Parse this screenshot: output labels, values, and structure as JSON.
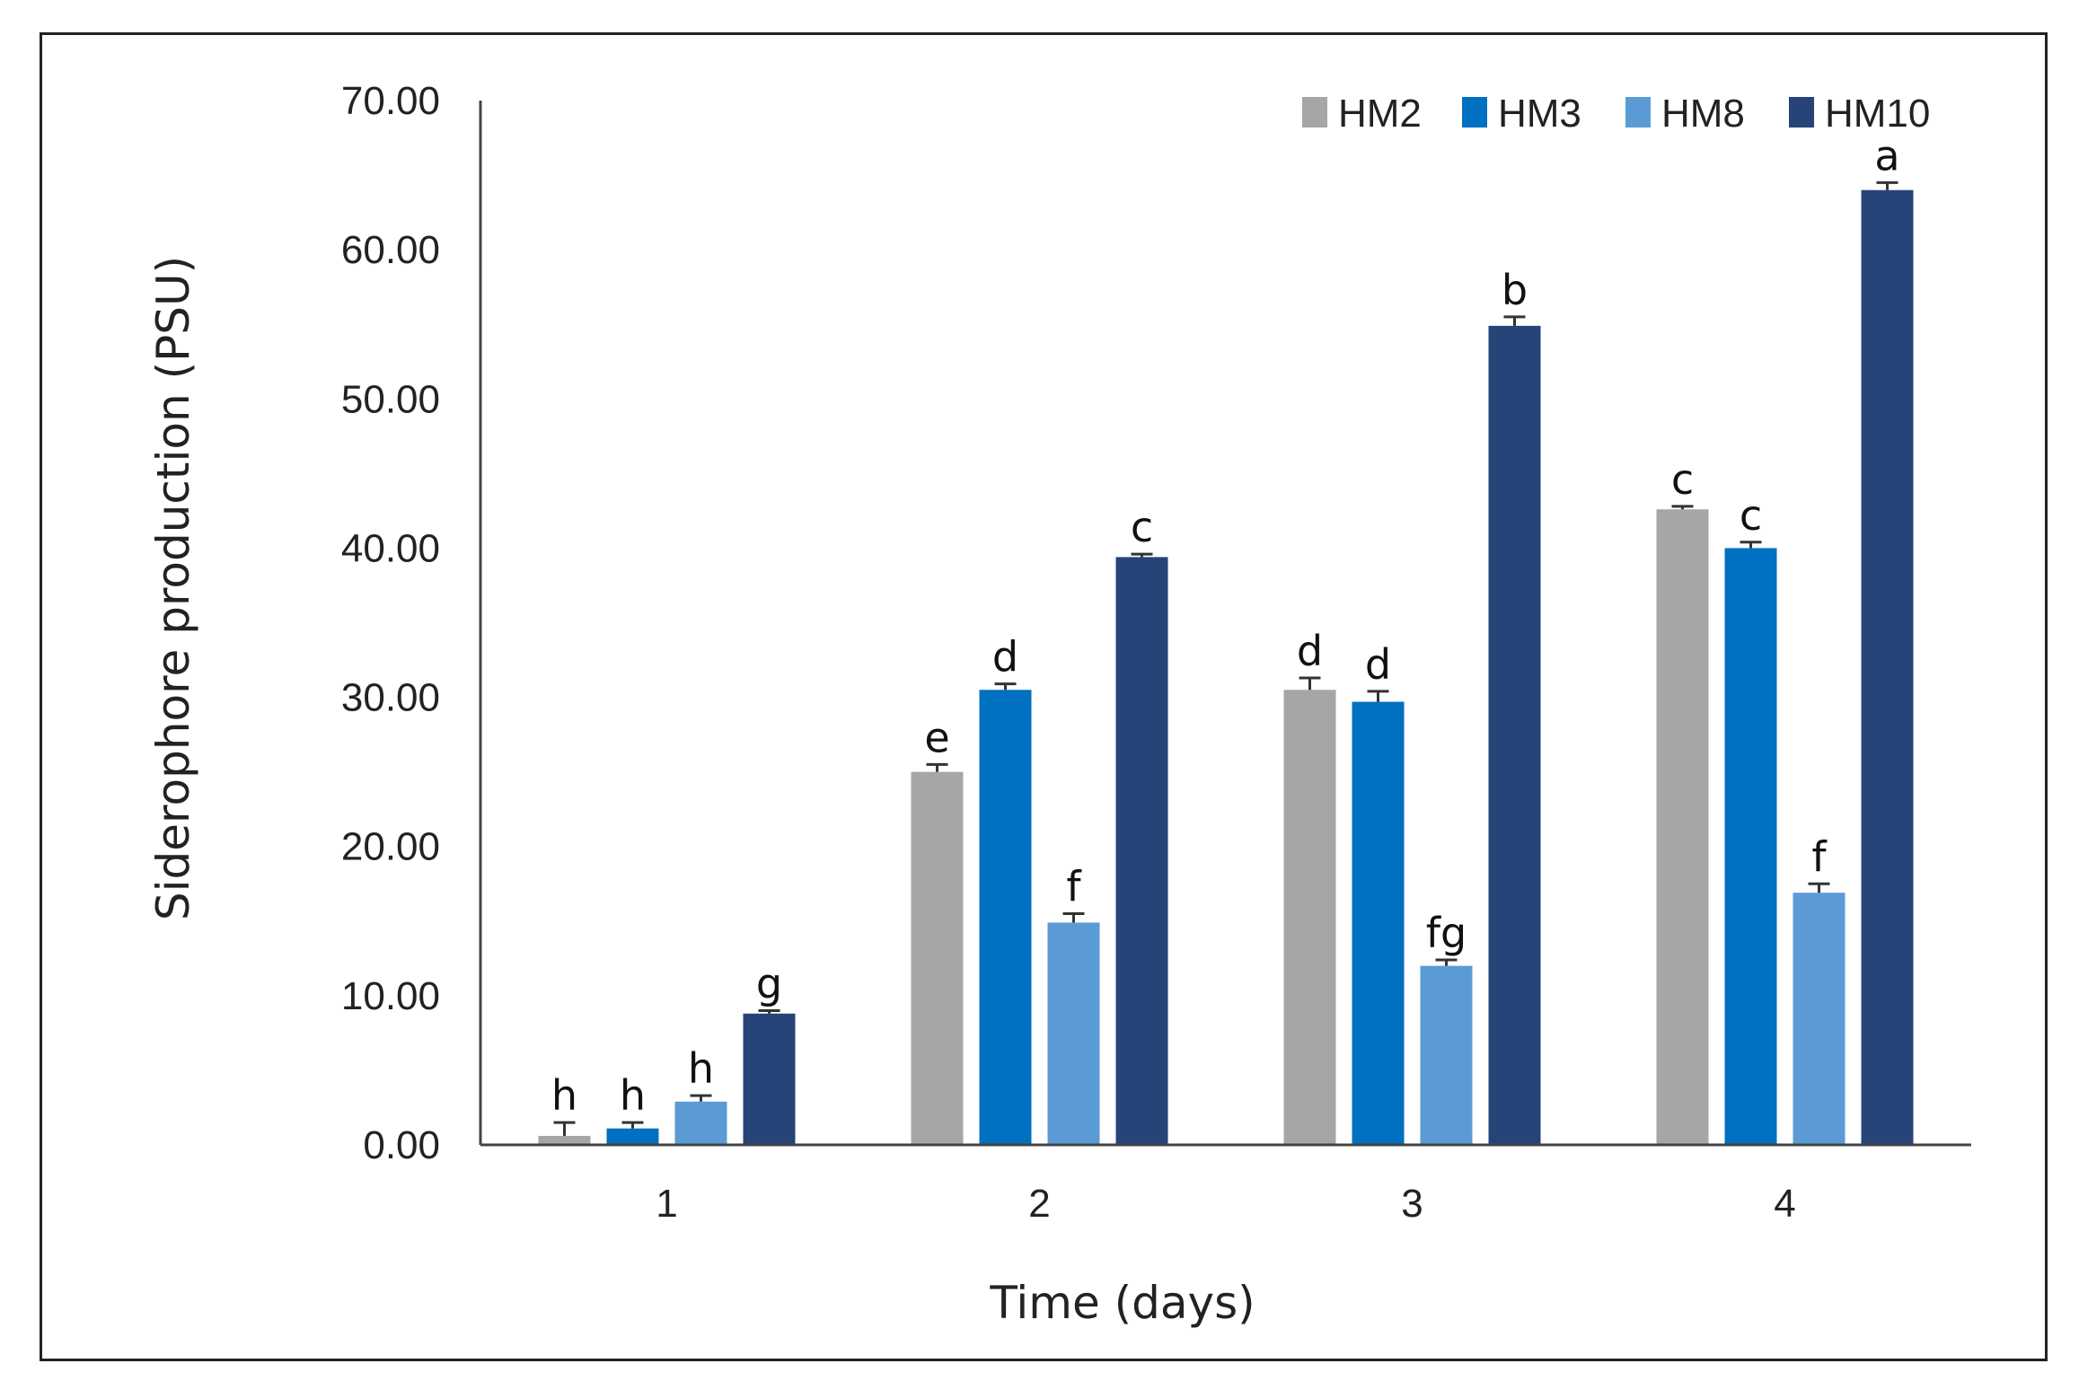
{
  "chart_data": {
    "type": "bar",
    "title": "",
    "xlabel": "Time (days)",
    "ylabel": "Siderophore production (PSU)",
    "ylim": [
      0,
      70
    ],
    "y_ticks": [
      "0.00",
      "10.00",
      "20.00",
      "30.00",
      "40.00",
      "50.00",
      "60.00",
      "70.00"
    ],
    "categories": [
      "1",
      "2",
      "3",
      "4"
    ],
    "legend_position": "top-right",
    "series": [
      {
        "name": "HM2",
        "color": "#a6a6a6",
        "values": [
          0.6,
          25.0,
          30.5,
          42.6
        ],
        "errors": [
          0.9,
          0.5,
          0.8,
          0.2
        ],
        "letters": [
          "h",
          "e",
          "d",
          "c"
        ]
      },
      {
        "name": "HM3",
        "color": "#0070c0",
        "values": [
          1.1,
          30.5,
          29.7,
          40.0
        ],
        "errors": [
          0.4,
          0.4,
          0.7,
          0.4
        ],
        "letters": [
          "h",
          "d",
          "d",
          "c"
        ]
      },
      {
        "name": "HM8",
        "color": "#5b9bd5",
        "values": [
          2.9,
          14.9,
          12.0,
          16.9
        ],
        "errors": [
          0.4,
          0.6,
          0.4,
          0.6
        ],
        "letters": [
          "h",
          "f",
          "fg",
          "f"
        ]
      },
      {
        "name": "HM10",
        "color": "#264478",
        "values": [
          8.8,
          39.4,
          54.9,
          64.0
        ],
        "errors": [
          0.2,
          0.2,
          0.6,
          0.5
        ],
        "letters": [
          "g",
          "c",
          "b",
          "a"
        ]
      }
    ]
  }
}
